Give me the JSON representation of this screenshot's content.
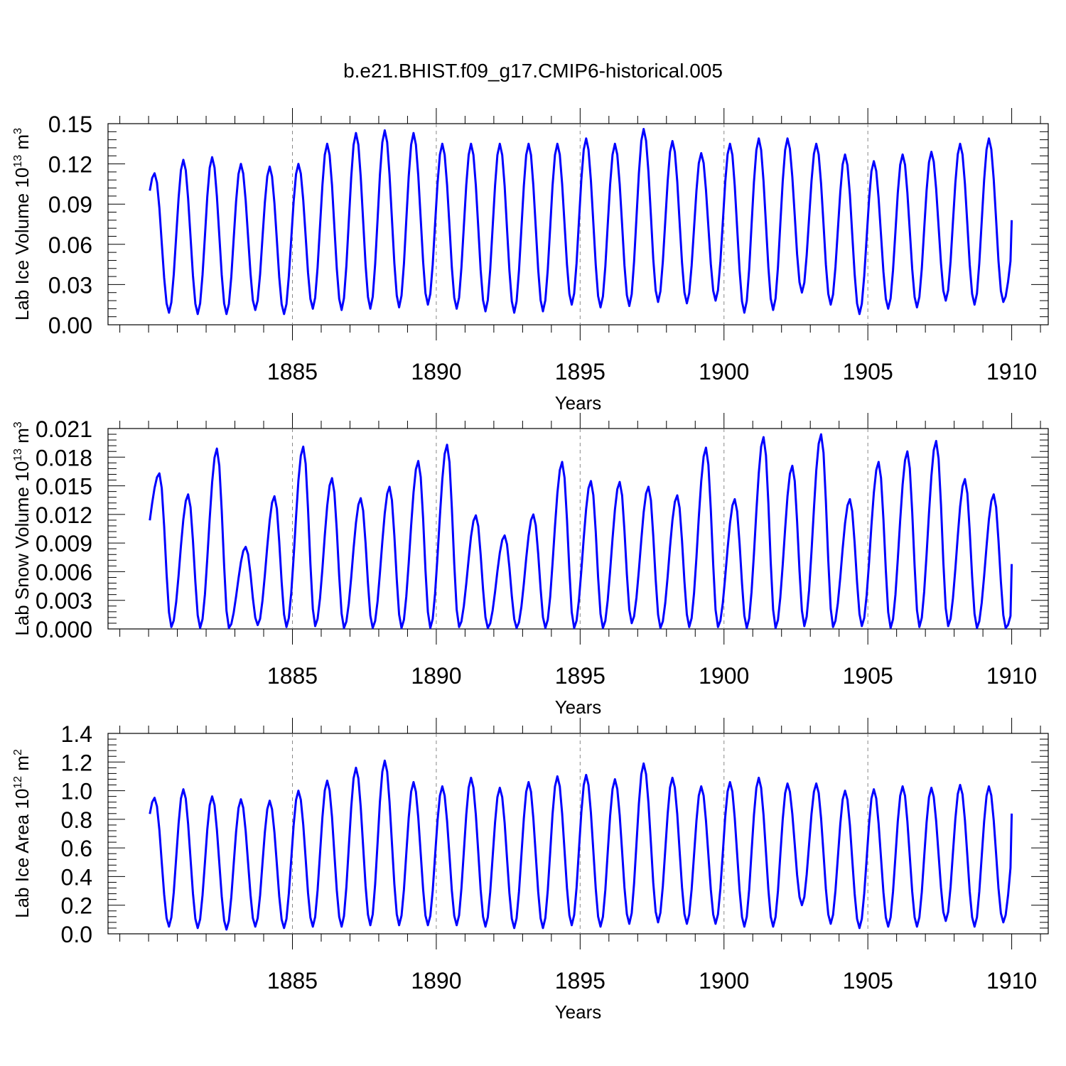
{
  "title": "b.e21.BHIST.f09_g17.CMIP6-historical.005",
  "colors": {
    "line": "#0000ff",
    "axis": "#000000",
    "grid": "#888888"
  },
  "chart_data": [
    {
      "type": "line",
      "xlabel": "Years",
      "ylabel_main": "Lab Ice Volume 10",
      "ylabel_exp": "13",
      "ylabel_unit": " m",
      "ylabel_unit_exp": "3",
      "xlim": [
        1880.0,
        1910.0
      ],
      "ylim": [
        0.0,
        0.15
      ],
      "xticks": [
        1885,
        1890,
        1895,
        1900,
        1905,
        1910
      ],
      "yticks": [
        "0.00",
        "0.03",
        "0.06",
        "0.09",
        "0.12",
        "0.15"
      ],
      "year_grid": [
        1885,
        1890,
        1895,
        1900,
        1905
      ],
      "series": [
        {
          "start_year": 1880.0417,
          "step": 0.083333,
          "peak_month": 2,
          "min_month": 8,
          "annual_max": [
            0.113,
            0.123,
            0.125,
            0.12,
            0.118,
            0.12,
            0.135,
            0.143,
            0.145,
            0.143,
            0.135,
            0.135,
            0.135,
            0.135,
            0.135,
            0.139,
            0.135,
            0.146,
            0.137,
            0.128,
            0.135,
            0.139,
            0.139,
            0.135,
            0.127,
            0.122,
            0.127,
            0.129,
            0.135,
            0.139
          ],
          "annual_min": [
            0.009,
            0.008,
            0.008,
            0.011,
            0.008,
            0.012,
            0.011,
            0.012,
            0.013,
            0.015,
            0.012,
            0.01,
            0.009,
            0.01,
            0.015,
            0.013,
            0.014,
            0.017,
            0.016,
            0.018,
            0.009,
            0.011,
            0.024,
            0.015,
            0.008,
            0.012,
            0.013,
            0.018,
            0.015,
            0.017
          ],
          "end_value": 0.078
        }
      ]
    },
    {
      "type": "line",
      "xlabel": "Years",
      "ylabel_main": "Lab Snow Volume 10",
      "ylabel_exp": "13",
      "ylabel_unit": " m",
      "ylabel_unit_exp": "3",
      "xlim": [
        1880.0,
        1910.0
      ],
      "ylim": [
        0.0,
        0.021
      ],
      "xticks": [
        1885,
        1890,
        1895,
        1900,
        1905,
        1910
      ],
      "yticks": [
        "0.000",
        "0.003",
        "0.006",
        "0.009",
        "0.012",
        "0.015",
        "0.018",
        "0.021"
      ],
      "year_grid": [
        1885,
        1890,
        1895,
        1900,
        1905
      ],
      "series": [
        {
          "start_year": 1880.0417,
          "step": 0.083333,
          "peak_month": 4,
          "min_month": 9,
          "annual_max": [
            0.0163,
            0.0141,
            0.0189,
            0.0086,
            0.0139,
            0.0191,
            0.0158,
            0.0137,
            0.0149,
            0.0176,
            0.0193,
            0.0119,
            0.0098,
            0.012,
            0.0175,
            0.0155,
            0.0154,
            0.0149,
            0.014,
            0.019,
            0.0136,
            0.0201,
            0.0171,
            0.0204,
            0.0136,
            0.0175,
            0.0186,
            0.0197,
            0.0157,
            0.0141
          ],
          "annual_min": [
            0.0002,
            0.0001,
            0.0001,
            0.0004,
            0.0002,
            0.0003,
            0.0001,
            0.0001,
            0.0001,
            0.0001,
            0.0002,
            0.0001,
            0.0001,
            0.0001,
            0.0001,
            0.0001,
            0.0006,
            0.0001,
            0.0002,
            0.0002,
            0.0001,
            0.0001,
            0.0003,
            0.0002,
            0.0003,
            0.0001,
            0.0002,
            0.0003,
            0.0001,
            0.0001
          ],
          "end_value": 0.0068
        }
      ]
    },
    {
      "type": "line",
      "xlabel": "Years",
      "ylabel_main": "Lab Ice Area 10",
      "ylabel_exp": "12",
      "ylabel_unit": " m",
      "ylabel_unit_exp": "2",
      "xlim": [
        1880.0,
        1910.0
      ],
      "ylim": [
        0.0,
        1.4
      ],
      "xticks": [
        1885,
        1890,
        1895,
        1900,
        1905,
        1910
      ],
      "yticks": [
        "0.0",
        "0.2",
        "0.4",
        "0.6",
        "0.8",
        "1.0",
        "1.2",
        "1.4"
      ],
      "year_grid": [
        1885,
        1890,
        1895,
        1900,
        1905
      ],
      "series": [
        {
          "start_year": 1880.0417,
          "step": 0.083333,
          "peak_month": 2,
          "min_month": 8,
          "annual_max": [
            0.95,
            1.01,
            0.96,
            0.94,
            0.93,
            1.0,
            1.07,
            1.16,
            1.21,
            1.06,
            1.03,
            1.09,
            1.02,
            1.06,
            1.1,
            1.11,
            1.08,
            1.19,
            1.09,
            1.03,
            1.06,
            1.09,
            1.05,
            1.05,
            1.0,
            1.01,
            1.03,
            1.02,
            1.04,
            1.03
          ],
          "annual_min": [
            0.05,
            0.04,
            0.03,
            0.05,
            0.04,
            0.05,
            0.05,
            0.06,
            0.06,
            0.06,
            0.06,
            0.05,
            0.04,
            0.04,
            0.06,
            0.05,
            0.07,
            0.08,
            0.07,
            0.07,
            0.05,
            0.05,
            0.2,
            0.07,
            0.04,
            0.05,
            0.05,
            0.09,
            0.05,
            0.08
          ],
          "end_value": 0.84
        }
      ]
    }
  ]
}
